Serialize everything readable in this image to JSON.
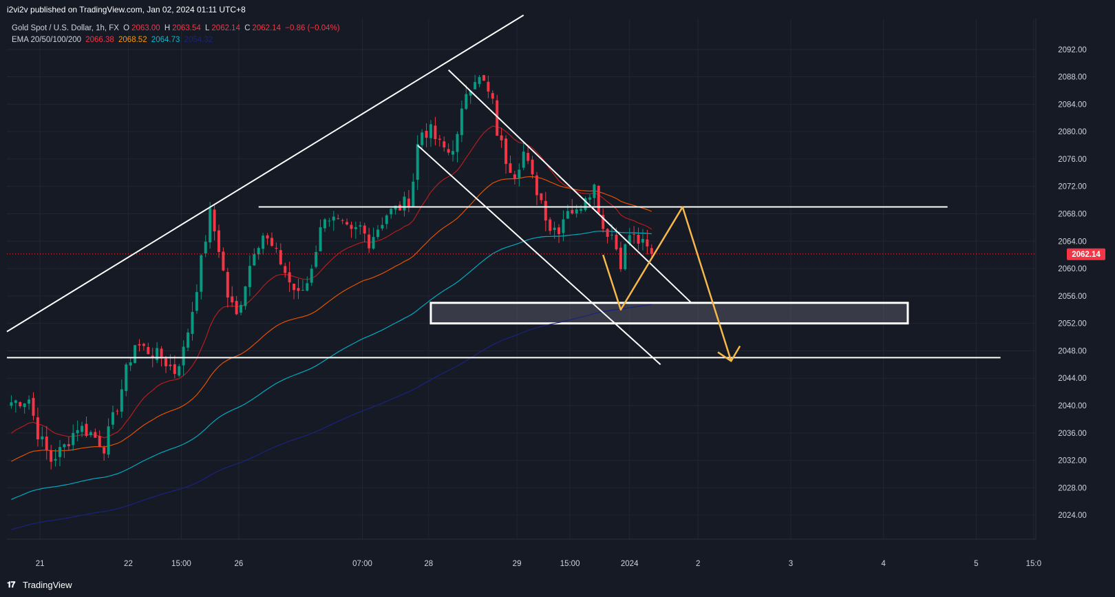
{
  "header": {
    "publish_text": "i2vi2v published on TradingView.com, Jan 02, 2024 01:11 UTC+8"
  },
  "legend": {
    "symbol": "Gold Spot / U.S. Dollar, 1h, FX",
    "open_key": "O",
    "open": "2063.00",
    "high_key": "H",
    "high": "2063.54",
    "low_key": "L",
    "low": "2062.14",
    "close_key": "C",
    "close": "2062.14",
    "change": "−0.86 (−0.04%)",
    "ema_label": "EMA 20/50/100/200",
    "ema20": "2066.38",
    "ema50": "2068.52",
    "ema100": "2064.73",
    "ema200": "2054.32"
  },
  "footer": {
    "brand": "TradingView"
  },
  "colors": {
    "background": "#161a25",
    "grid": "#222631",
    "up": "#089981",
    "down": "#f23645",
    "ema20": "#b71c1c",
    "ema50": "#e65100",
    "ema100": "#00acc1",
    "ema200": "#1a237e",
    "forecast": "#f7b84b",
    "drawing": "#ffffff"
  },
  "chart_data": {
    "type": "candlestick",
    "symbol": "XAUUSD",
    "interval": "1h",
    "price_axis": {
      "ticks": [
        2024,
        2028,
        2032,
        2036,
        2040,
        2044,
        2048,
        2052,
        2056,
        2060,
        2064,
        2068,
        2072,
        2076,
        2080,
        2084,
        2088,
        2092
      ],
      "range": [
        2020.5,
        2096.5
      ],
      "tick_suffix": ".00",
      "last_price": "2062.14"
    },
    "time_axis": {
      "ticks": [
        {
          "label": "21",
          "bar": 6.5
        },
        {
          "label": "22",
          "bar": 26.5
        },
        {
          "label": "15:00",
          "bar": 38.5
        },
        {
          "label": "26",
          "bar": 51.5
        },
        {
          "label": "07:00",
          "bar": 79.5
        },
        {
          "label": "28",
          "bar": 94.5
        },
        {
          "label": "29",
          "bar": 114.5
        },
        {
          "label": "15:00",
          "bar": 126.5
        },
        {
          "label": "2024",
          "bar": 140
        },
        {
          "label": "2",
          "bar": 155.5
        },
        {
          "label": "3",
          "bar": 176.5
        },
        {
          "label": "4",
          "bar": 197.5
        },
        {
          "label": "5",
          "bar": 218.5
        },
        {
          "label": "15:0",
          "bar": 231.5
        }
      ],
      "bar_range": [
        -1,
        232
      ]
    },
    "anchors": [
      [
        0,
        2040.5
      ],
      [
        4,
        2041
      ],
      [
        6,
        2036
      ],
      [
        9,
        2032
      ],
      [
        12,
        2034
      ],
      [
        15,
        2037
      ],
      [
        18,
        2036
      ],
      [
        21,
        2034
      ],
      [
        24,
        2040
      ],
      [
        26,
        2045
      ],
      [
        28,
        2049
      ],
      [
        31,
        2048
      ],
      [
        34,
        2047
      ],
      [
        37,
        2045
      ],
      [
        39,
        2048
      ],
      [
        41,
        2054
      ],
      [
        43,
        2061
      ],
      [
        45,
        2068
      ],
      [
        47,
        2063
      ],
      [
        49,
        2056
      ],
      [
        51,
        2053
      ],
      [
        53,
        2058
      ],
      [
        55,
        2063
      ],
      [
        57,
        2065
      ],
      [
        59,
        2063
      ],
      [
        61,
        2061
      ],
      [
        63,
        2058
      ],
      [
        65,
        2056
      ],
      [
        67,
        2058
      ],
      [
        69,
        2063
      ],
      [
        71,
        2068
      ],
      [
        73,
        2067
      ],
      [
        75,
        2066
      ],
      [
        77,
        2065
      ],
      [
        79,
        2066
      ],
      [
        81,
        2064
      ],
      [
        83,
        2066
      ],
      [
        85,
        2068
      ],
      [
        88,
        2069
      ],
      [
        90,
        2070
      ],
      [
        91,
        2073
      ],
      [
        92,
        2078
      ],
      [
        93,
        2080
      ],
      [
        95,
        2080
      ],
      [
        97,
        2078
      ],
      [
        99,
        2077
      ],
      [
        101,
        2079
      ],
      [
        103,
        2086
      ],
      [
        105,
        2088
      ],
      [
        107,
        2087
      ],
      [
        109,
        2084
      ],
      [
        110,
        2080
      ],
      [
        112,
        2076
      ],
      [
        114,
        2074
      ],
      [
        116,
        2077
      ],
      [
        118,
        2073
      ],
      [
        120,
        2070
      ],
      [
        122,
        2066
      ],
      [
        124,
        2066
      ],
      [
        126,
        2069
      ],
      [
        128,
        2068
      ],
      [
        130,
        2071
      ],
      [
        132,
        2072
      ],
      [
        134,
        2066
      ],
      [
        136,
        2065
      ],
      [
        138,
        2061
      ],
      [
        140,
        2065
      ],
      [
        142,
        2064
      ],
      [
        145,
        2062.14
      ]
    ],
    "ema_start": {
      "ema20": 2035.5,
      "ema50": 2031.5,
      "ema100": 2026,
      "ema200": 2021.7
    },
    "ema_period": {
      "ema20": 20,
      "ema50": 50,
      "ema100": 100,
      "ema200": 200
    },
    "drawings": {
      "rising_trendline": [
        [
          -1,
          2050.8
        ],
        [
          116,
          2097
        ]
      ],
      "resistance_line": [
        [
          56,
          2069
        ],
        [
          212,
          2069
        ]
      ],
      "support_line": [
        [
          -1,
          2047
        ],
        [
          224,
          2047
        ]
      ],
      "channel_upper": [
        [
          99,
          2089
        ],
        [
          154,
          2055
        ]
      ],
      "channel_lower": [
        [
          92,
          2078
        ],
        [
          147,
          2046
        ]
      ],
      "demand_zone": {
        "from_bar": 95,
        "to_bar": 203,
        "top": 2055,
        "bottom": 2052
      },
      "forecast_path": [
        [
          134,
          2062
        ],
        [
          138,
          2054
        ],
        [
          152,
          2069
        ],
        [
          163,
          2046.5
        ]
      ],
      "forecast_arrowhead": [
        [
          160,
          2047.8
        ],
        [
          163,
          2046.5
        ],
        [
          165,
          2048.7
        ]
      ]
    }
  }
}
